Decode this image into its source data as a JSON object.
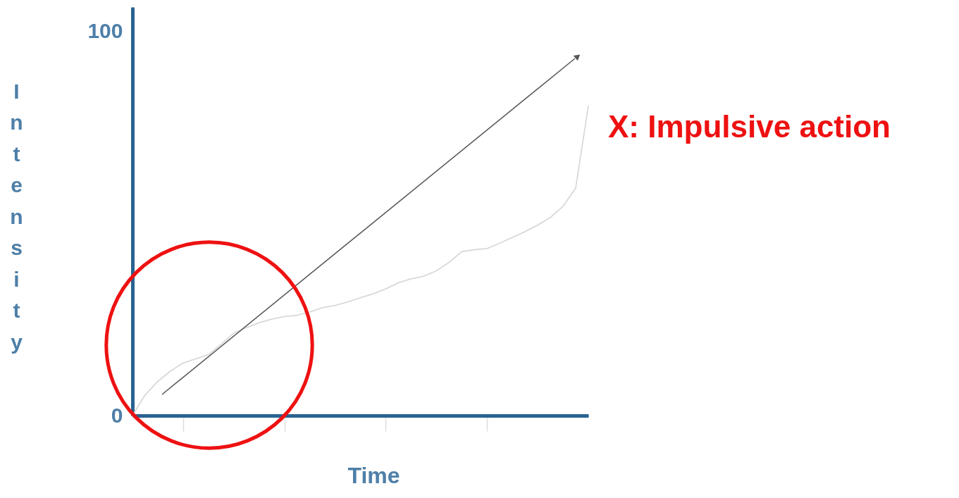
{
  "chart_data": {
    "type": "line",
    "xlabel": "Time",
    "ylabel": "Intensity",
    "categories": [
      null,
      null,
      null,
      null,
      null,
      null,
      null,
      null,
      null,
      null,
      null,
      null,
      null,
      null,
      null,
      null,
      null,
      null,
      null,
      null,
      null,
      null,
      null,
      null,
      null,
      null,
      null,
      null,
      null,
      null,
      null,
      null,
      null,
      null,
      null,
      null,
      null
    ],
    "ylim": [
      0,
      106.4
    ],
    "yticks": [
      0,
      100
    ],
    "tick_labels": "y",
    "grid": false,
    "series": [
      {
        "color": "#d9d9d9",
        "values": [
          0,
          5.4,
          8.9,
          11.6,
          13.7,
          14.8,
          15.9,
          18.6,
          21.5,
          22.9,
          24.2,
          25.1,
          25.8,
          26.1,
          27.0,
          28.1,
          28.7,
          29.6,
          30.7,
          31.7,
          33.0,
          34.6,
          35.6,
          36.3,
          37.7,
          39.9,
          42.7,
          43.2,
          43.5,
          44.9,
          46.4,
          47.9,
          49.6,
          51.6,
          54.5,
          59.3,
          80.7
        ]
      }
    ],
    "annotations": [
      "X: Impulsive action"
    ]
  }
}
